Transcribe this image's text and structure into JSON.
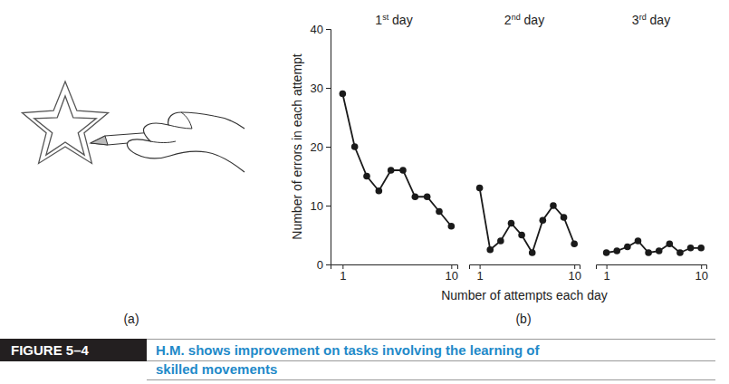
{
  "chart_data": [
    {
      "type": "line",
      "title": "1st day",
      "y_label": "Number of errors in each attempt",
      "x": [
        1,
        2,
        3,
        4,
        5,
        6,
        7,
        8,
        9,
        10
      ],
      "values": [
        29,
        20,
        15,
        12.5,
        16,
        16,
        11.5,
        11.5,
        9,
        6.5
      ],
      "xlim": [
        0,
        10.5
      ],
      "xticks": [
        1,
        10
      ],
      "ylim": [
        0,
        40
      ],
      "yticks": [
        0,
        10,
        20,
        30,
        40
      ],
      "color": "#1a1a1a",
      "marker": "circle",
      "line_style": "solid"
    },
    {
      "type": "line",
      "title": "2nd day",
      "x_label": "Number of attempts each day",
      "x": [
        1,
        2,
        3,
        4,
        5,
        6,
        7,
        8,
        9,
        10
      ],
      "values": [
        13,
        2.5,
        4,
        7,
        5,
        2,
        7.5,
        10,
        8,
        3.5
      ],
      "xlim": [
        0,
        10.5
      ],
      "xticks": [
        1,
        10
      ],
      "ylim": [
        0,
        40
      ],
      "tick_labels": "x",
      "color": "#1a1a1a",
      "marker": "circle",
      "line_style": "solid"
    },
    {
      "type": "line",
      "title": "3rd day",
      "x": [
        1,
        2,
        3,
        4,
        5,
        6,
        7,
        8,
        9,
        10
      ],
      "values": [
        2,
        2.3,
        3,
        4,
        2,
        2.3,
        3.5,
        2,
        2.8,
        2.8
      ],
      "xlim": [
        0,
        10.5
      ],
      "xticks": [
        1,
        10
      ],
      "ylim": [
        0,
        40
      ],
      "tick_labels": "x",
      "color": "#1a1a1a",
      "marker": "circle",
      "line_style": "solid"
    }
  ],
  "figure": {
    "number": "FIGURE 5–4",
    "caption": "H.M. shows improvement on tasks involving the learning of skilled movements",
    "panel_labels": [
      "(a)",
      "(b)"
    ]
  }
}
